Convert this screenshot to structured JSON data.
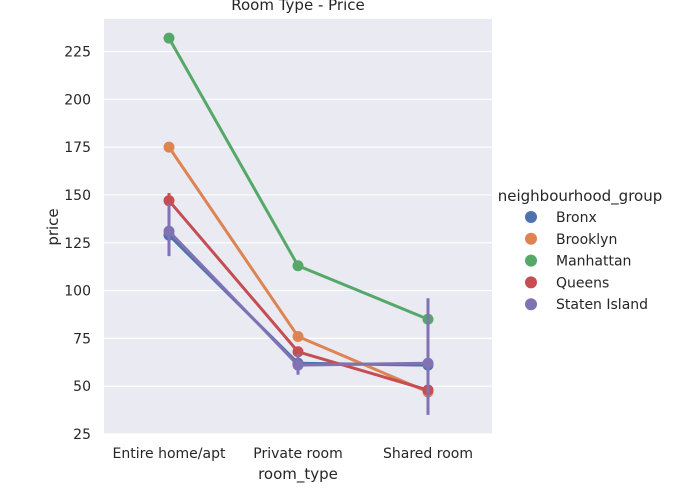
{
  "chart_data": {
    "type": "line",
    "title": "Room Type - Price",
    "xlabel": "room_type",
    "ylabel": "price",
    "categories": [
      "Entire home/apt",
      "Private room",
      "Shared room"
    ],
    "ylim": [
      25,
      242
    ],
    "yticks": [
      25,
      50,
      75,
      100,
      125,
      150,
      175,
      200,
      225
    ],
    "grid": true,
    "legend": {
      "title": "neighbourhood_group",
      "placement": "right"
    },
    "series": [
      {
        "name": "Bronx",
        "color": "#4c72b0",
        "values": [
          129,
          62,
          61
        ],
        "ci": [
          [
            126,
            132
          ],
          [
            60,
            64
          ],
          [
            59,
            63
          ]
        ]
      },
      {
        "name": "Brooklyn",
        "color": "#dd8452",
        "values": [
          175,
          76,
          47
        ],
        "ci": [
          [
            173,
            177
          ],
          [
            75,
            77
          ],
          [
            44,
            50
          ]
        ]
      },
      {
        "name": "Manhattan",
        "color": "#55a868",
        "values": [
          232,
          113,
          85
        ],
        "ci": [
          [
            230,
            234
          ],
          [
            112,
            114
          ],
          [
            82,
            88
          ]
        ]
      },
      {
        "name": "Queens",
        "color": "#c44e52",
        "values": [
          147,
          68,
          48
        ],
        "ci": [
          [
            143,
            151
          ],
          [
            66,
            70
          ],
          [
            44,
            52
          ]
        ]
      },
      {
        "name": "Staten Island",
        "color": "#8172b3",
        "values": [
          131,
          61,
          62
        ],
        "ci": [
          [
            118,
            145
          ],
          [
            56,
            67
          ],
          [
            35,
            96
          ]
        ]
      }
    ]
  }
}
